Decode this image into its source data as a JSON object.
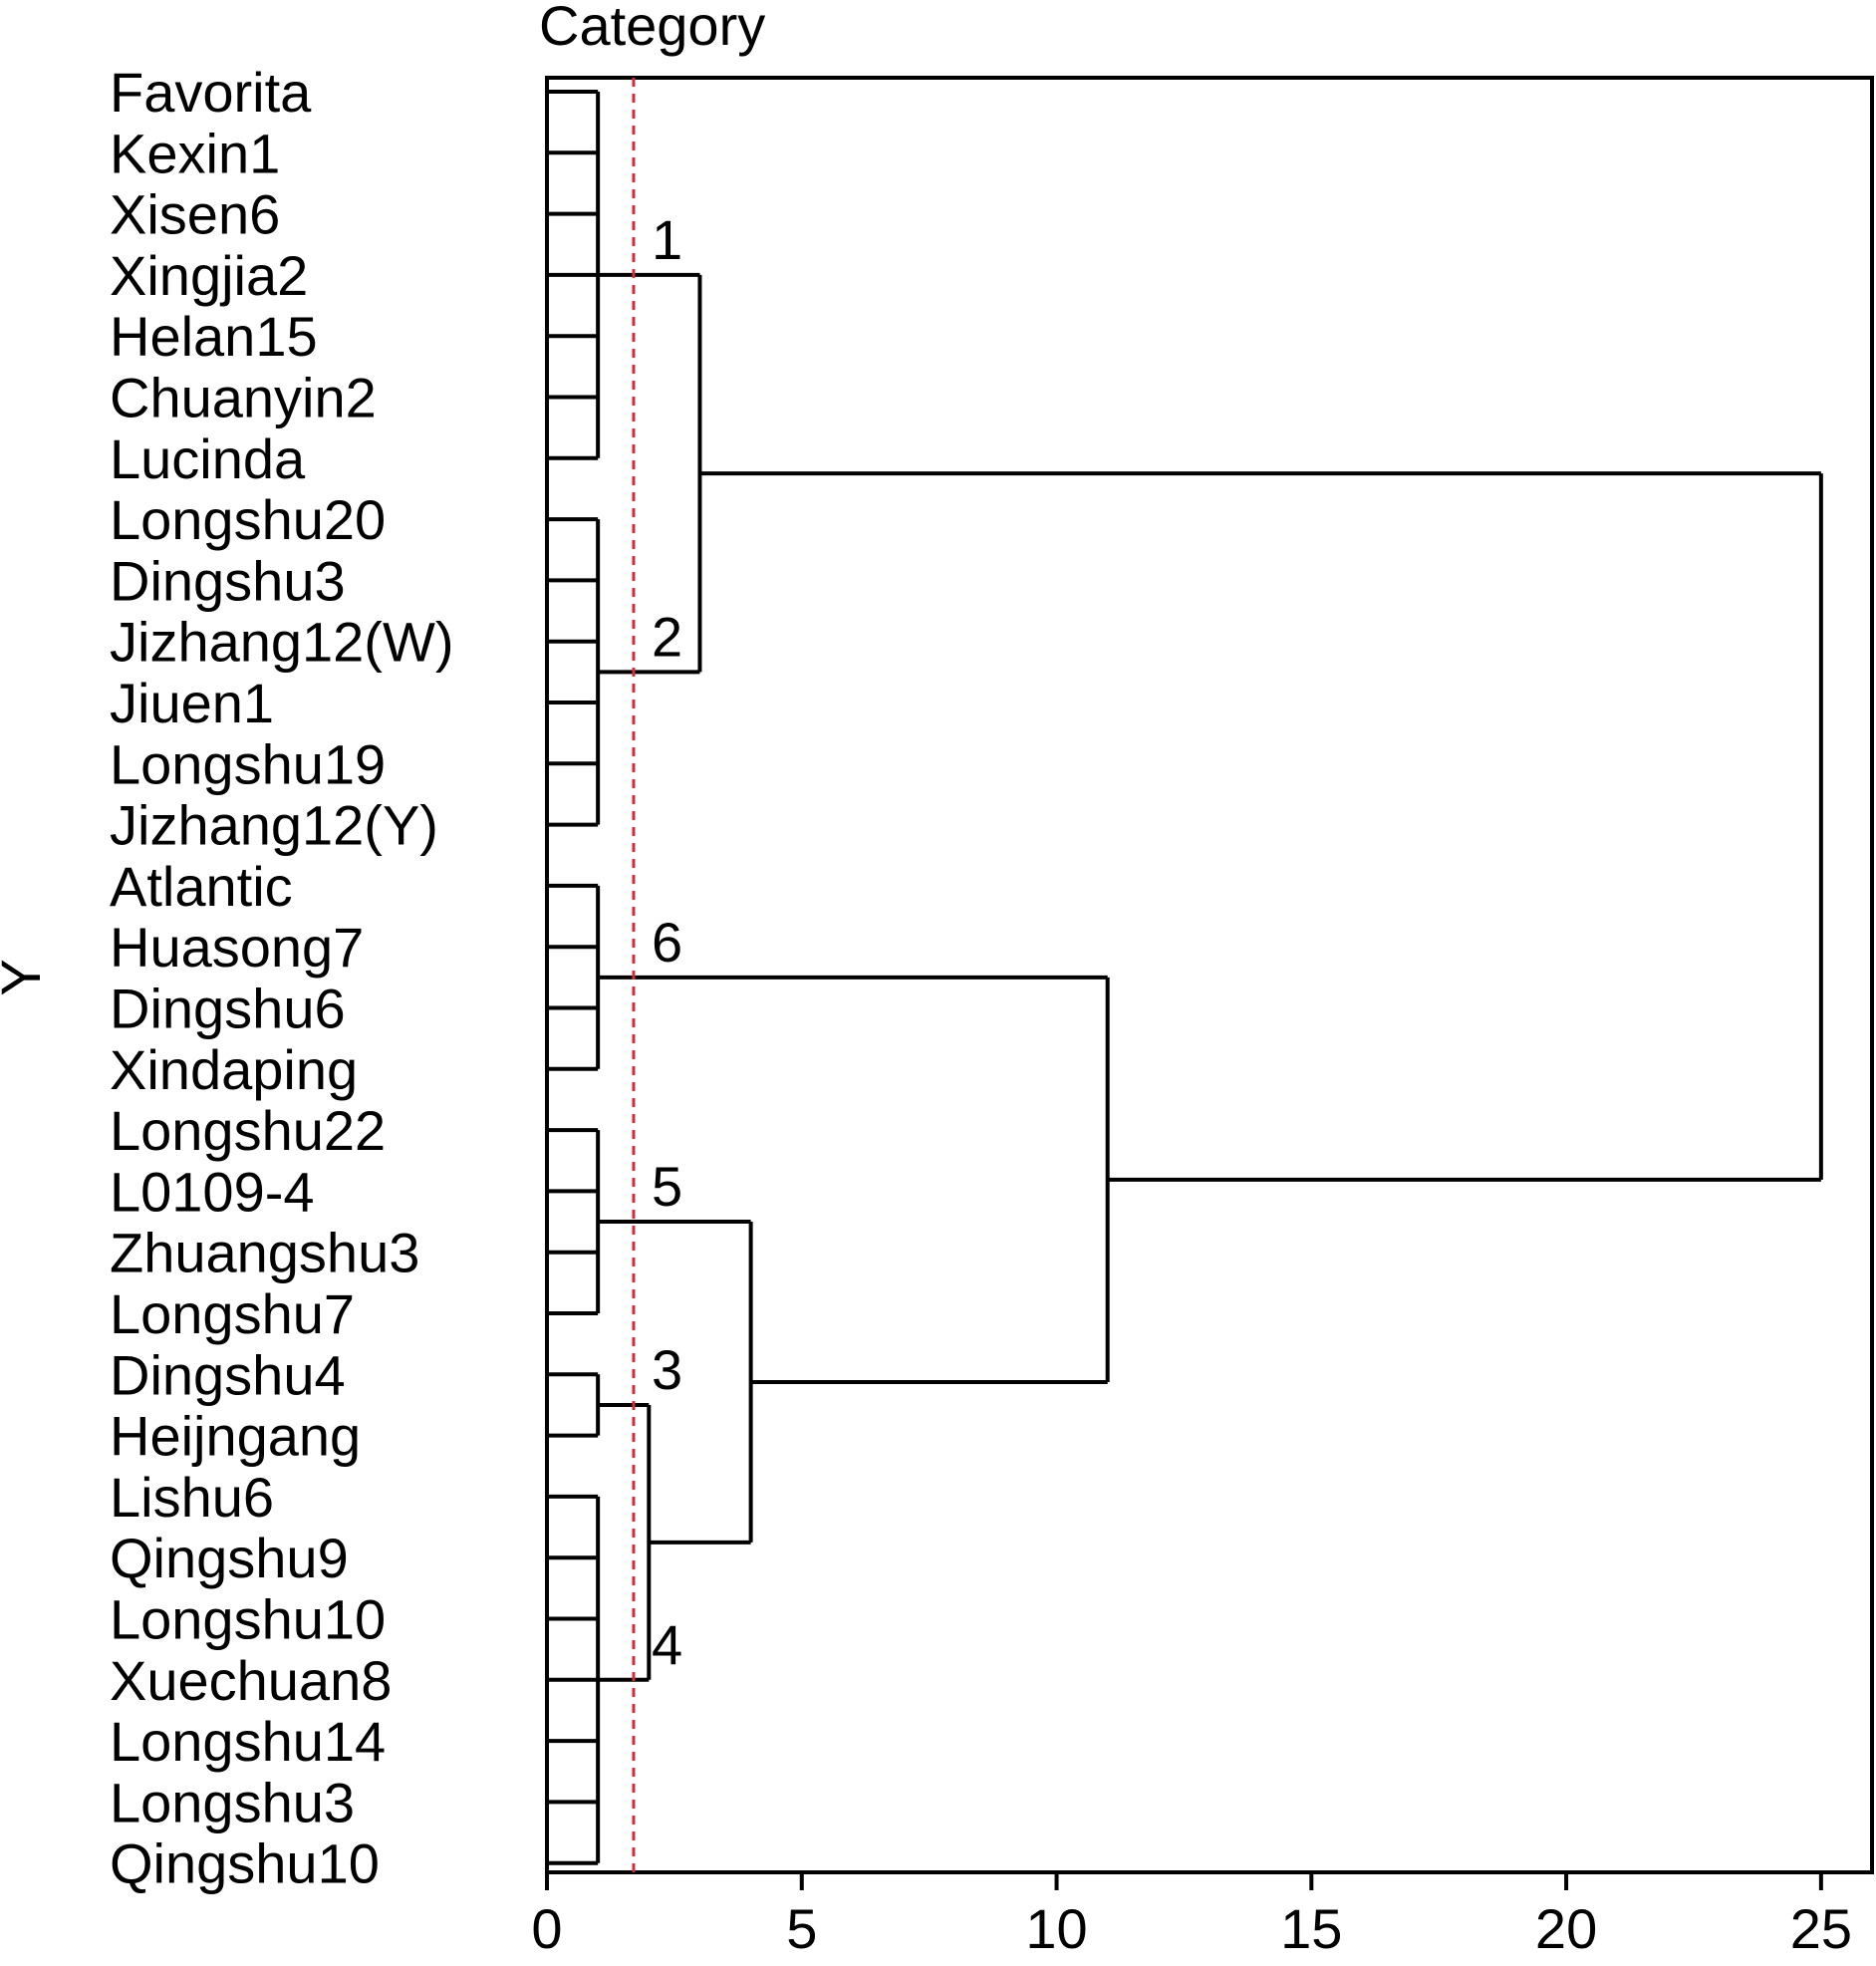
{
  "chart_data": {
    "type": "dendrogram",
    "title": "Category",
    "ylabel": "Y",
    "xlabel": "",
    "xlim": [
      0,
      26
    ],
    "xticks": [
      0,
      5,
      10,
      15,
      20,
      25
    ],
    "grid": false,
    "orientation": "horizontal",
    "leaves": [
      "Favorita",
      "Kexin1",
      "Xisen6",
      "Xingjia2",
      "Helan15",
      "Chuanyin2",
      "Lucinda",
      "Longshu20",
      "Dingshu3",
      "Jizhang12(W)",
      "Jiuen1",
      "Longshu19",
      "Jizhang12(Y)",
      "Atlantic",
      "Huasong7",
      "Dingshu6",
      "Xindaping",
      "Longshu22",
      "L0109-4",
      "Zhuangshu3",
      "Longshu7",
      "Dingshu4",
      "Heijngang",
      "Lishu6",
      "Qingshu9",
      "Longshu10",
      "Xuechuan8",
      "Longshu14",
      "Longshu3",
      "Qingshu10"
    ],
    "cut_threshold": 1.7,
    "cut_line_color": "#d0303c",
    "clusters": [
      {
        "label": "1",
        "members": [
          "Favorita",
          "Kexin1",
          "Xisen6",
          "Xingjia2",
          "Helan15",
          "Chuanyin2",
          "Lucinda"
        ]
      },
      {
        "label": "2",
        "members": [
          "Longshu20",
          "Dingshu3",
          "Jizhang12(W)",
          "Jiuen1",
          "Longshu19",
          "Jizhang12(Y)"
        ]
      },
      {
        "label": "6",
        "members": [
          "Atlantic",
          "Huasong7",
          "Dingshu6",
          "Xindaping"
        ]
      },
      {
        "label": "5",
        "members": [
          "Longshu22",
          "L0109-4",
          "Zhuangshu3",
          "Longshu7"
        ]
      },
      {
        "label": "3",
        "members": [
          "Dingshu4",
          "Heijngang"
        ]
      },
      {
        "label": "4",
        "members": [
          "Lishu6",
          "Qingshu9",
          "Longshu10",
          "Xuechuan8",
          "Longshu14",
          "Longshu3",
          "Qingshu10"
        ]
      }
    ],
    "merges": [
      {
        "id": "c1",
        "children": [
          "Favorita",
          "Kexin1",
          "Xisen6",
          "Xingjia2",
          "Helan15",
          "Chuanyin2",
          "Lucinda"
        ],
        "height": 1.0
      },
      {
        "id": "c2",
        "children": [
          "Longshu20",
          "Dingshu3",
          "Jizhang12(W)",
          "Jiuen1",
          "Longshu19",
          "Jizhang12(Y)"
        ],
        "height": 1.0
      },
      {
        "id": "c6",
        "children": [
          "Atlantic",
          "Huasong7",
          "Dingshu6",
          "Xindaping"
        ],
        "height": 1.0
      },
      {
        "id": "c5",
        "children": [
          "Longshu22",
          "L0109-4",
          "Zhuangshu3",
          "Longshu7"
        ],
        "height": 1.0
      },
      {
        "id": "c3",
        "children": [
          "Dingshu4",
          "Heijngang"
        ],
        "height": 1.0
      },
      {
        "id": "c4",
        "children": [
          "Lishu6",
          "Qingshu9",
          "Longshu10",
          "Xuechuan8",
          "Longshu14",
          "Longshu3",
          "Qingshu10"
        ],
        "height": 1.0
      },
      {
        "id": "c12",
        "children": [
          "c1",
          "c2"
        ],
        "height": 3.0
      },
      {
        "id": "c34",
        "children": [
          "c3",
          "c4"
        ],
        "height": 2.0
      },
      {
        "id": "c345",
        "children": [
          "c5",
          "c34"
        ],
        "height": 4.0
      },
      {
        "id": "c3456",
        "children": [
          "c6",
          "c345"
        ],
        "height": 11.0
      },
      {
        "id": "root",
        "children": [
          "c12",
          "c3456"
        ],
        "height": 25.0
      }
    ]
  }
}
